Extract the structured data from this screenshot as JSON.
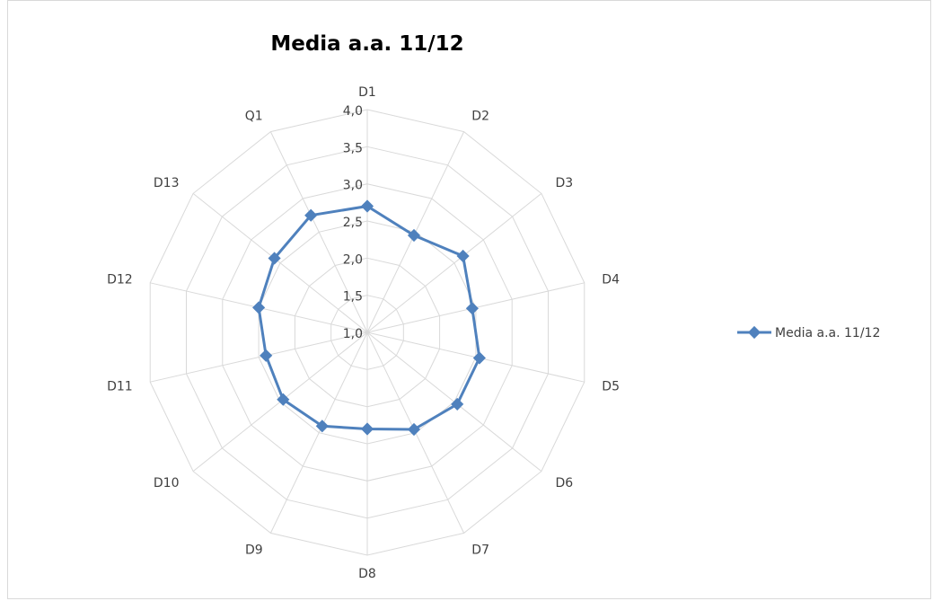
{
  "chart_data": {
    "type": "radar",
    "title": "Media a.a. 11/12",
    "categories": [
      "D1",
      "D2",
      "D3",
      "D4",
      "D5",
      "D6",
      "D7",
      "D8",
      "D9",
      "D10",
      "D11",
      "D12",
      "D13",
      "Q1"
    ],
    "series": [
      {
        "name": "Media a.a. 11/12",
        "values": [
          2.7,
          2.45,
          2.65,
          2.45,
          2.55,
          2.55,
          2.45,
          2.3,
          2.4,
          2.45,
          2.4,
          2.5,
          2.6,
          2.75
        ]
      }
    ],
    "rlim": [
      1.0,
      4.0
    ],
    "ticks": [
      "1,0",
      "1,5",
      "2,0",
      "2,5",
      "3,0",
      "3,5",
      "4,0"
    ],
    "tick_values": [
      1.0,
      1.5,
      2.0,
      2.5,
      3.0,
      3.5,
      4.0
    ],
    "grid": true,
    "legend_position": "right",
    "colors": {
      "series": "#4f81bd",
      "grid": "#d9d9d9",
      "text": "#404040"
    }
  }
}
